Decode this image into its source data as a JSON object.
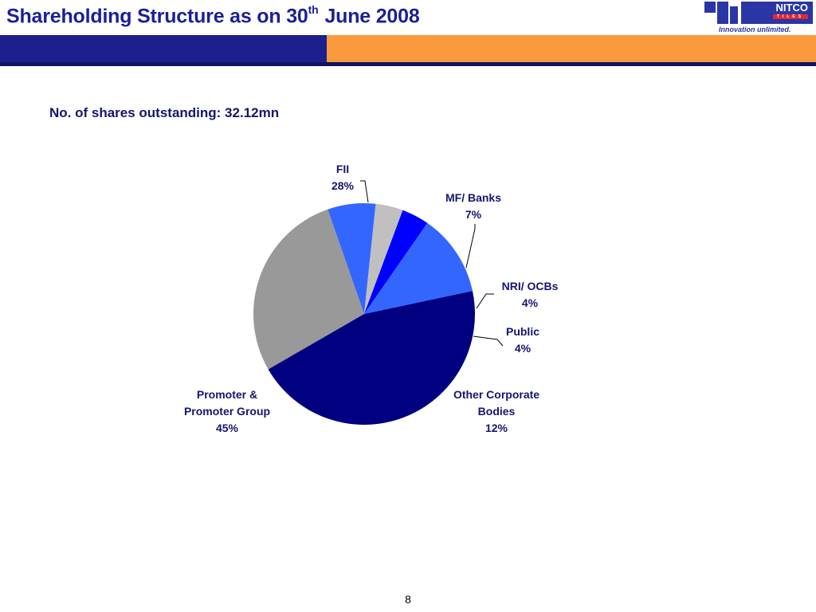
{
  "header": {
    "title_main": "Shareholding Structure as on 30",
    "title_sup": "th",
    "title_tail": "June 2008"
  },
  "logo": {
    "brand": "NITCO",
    "sub": "TILES",
    "tagline": "Innovation unlimited."
  },
  "subtitle": "No. of shares outstanding: 32.12mn",
  "footer": {
    "page_number": "8"
  },
  "colors": {
    "title": "#1a1f9a",
    "band_blue": "#1c1f8c",
    "band_orange": "#fb9a3d",
    "label": "#12166e"
  },
  "chart_data": {
    "type": "pie",
    "title": "",
    "unit": "%",
    "slices": [
      {
        "label_lines": [
          "FII"
        ],
        "value": 28,
        "value_text": "28%",
        "color": "#999999"
      },
      {
        "label_lines": [
          "MF/ Banks"
        ],
        "value": 7,
        "value_text": "7%",
        "color": "#3366ff"
      },
      {
        "label_lines": [
          "NRI/ OCBs"
        ],
        "value": 4,
        "value_text": "4%",
        "color": "#c0c0c0"
      },
      {
        "label_lines": [
          "Public"
        ],
        "value": 4,
        "value_text": "4%",
        "color": "#0000ff"
      },
      {
        "label_lines": [
          "Other Corporate",
          "Bodies"
        ],
        "value": 12,
        "value_text": "12%",
        "color": "#3366ff"
      },
      {
        "label_lines": [
          "Promoter &",
          "Promoter Group"
        ],
        "value": 45,
        "value_text": "45%",
        "color": "#000080"
      }
    ]
  }
}
